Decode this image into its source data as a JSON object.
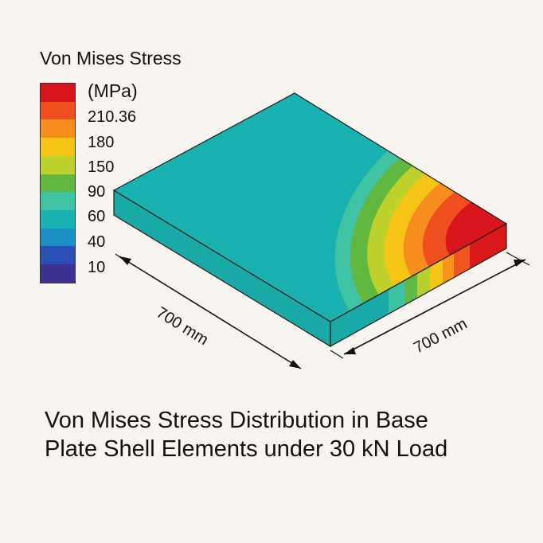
{
  "legend": {
    "title": "Von Mises Stress",
    "unit": "(MPa)",
    "ticks": [
      "210.36",
      "180",
      "150",
      "90",
      "60",
      "40",
      "10"
    ],
    "colors": [
      "#d8141c",
      "#ef4f1f",
      "#f78d1e",
      "#f5c414",
      "#bfd12d",
      "#62b83e",
      "#3fc3a2",
      "#1ab2b0",
      "#1c8fc4",
      "#2b4fb5",
      "#3d3290"
    ]
  },
  "plate": {
    "base_color": "#1ab2b0",
    "contour_colors": [
      "#d8141c",
      "#ef4f1f",
      "#f78d1e",
      "#f5c414",
      "#bfd12d",
      "#62b83e",
      "#3fc3a2"
    ]
  },
  "dimensions": {
    "left": "700 mm",
    "right": "700 mm"
  },
  "caption": {
    "line1": "Von Mises Stress Distribution in Base",
    "line2": "Plate Shell Elements under 30 kN Load"
  }
}
